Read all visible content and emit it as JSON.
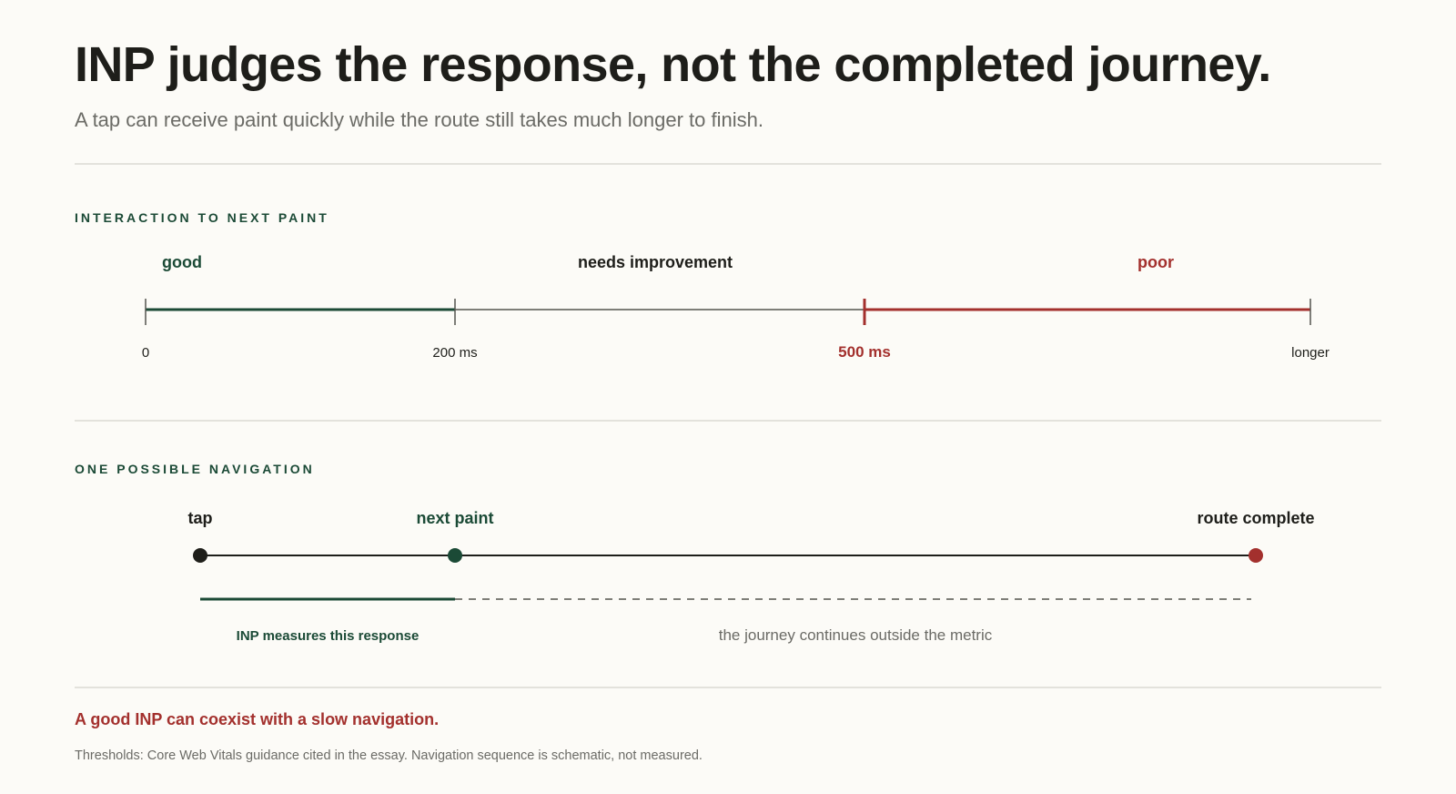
{
  "header": {
    "title": "INP judges the response, not the completed journey.",
    "subtitle": "A tap can receive paint quickly while the route still takes much longer to finish."
  },
  "colors": {
    "background": "#fcfbf7",
    "ink": "#1e1e1a",
    "good": "#1b4a36",
    "poor": "#a3302d",
    "muted": "#6b6b66",
    "rule": "#e3e2dc"
  },
  "inp_scale": {
    "section_label": "INTERACTION TO NEXT PAINT",
    "zones": {
      "good": "good",
      "needs_improvement": "needs improvement",
      "poor": "poor"
    },
    "ticks": {
      "zero": "0",
      "good_threshold": "200 ms",
      "poor_threshold": "500 ms",
      "end": "longer"
    }
  },
  "navigation": {
    "section_label": "ONE POSSIBLE NAVIGATION",
    "events": {
      "tap": "tap",
      "next_paint": "next paint",
      "route_complete": "route complete"
    },
    "spans": {
      "measured": "INP measures this response",
      "unmeasured": "the journey continues outside the metric"
    }
  },
  "callout": "A good INP can coexist with a slow navigation.",
  "footnote": "Thresholds: Core Web Vitals guidance cited in the essay. Navigation sequence is schematic, not measured."
}
